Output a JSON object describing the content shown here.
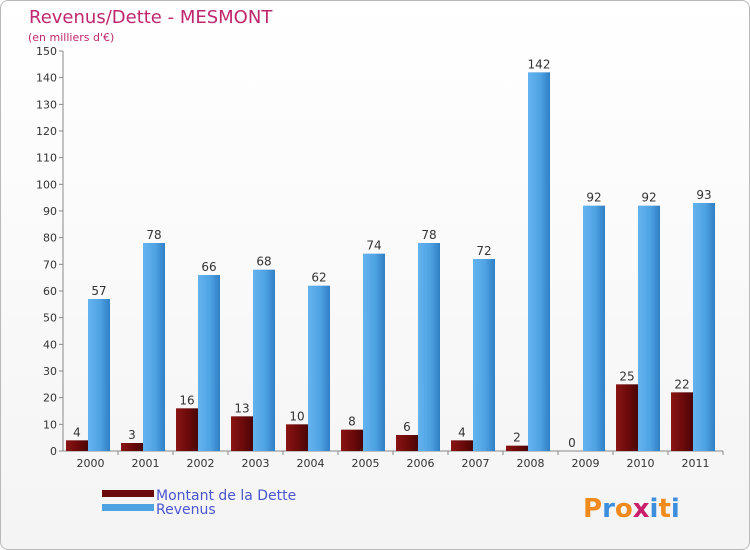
{
  "chart_data": {
    "type": "bar",
    "title": "Revenus/Dette - MESMONT",
    "subtitle": "(en milliers d'€)",
    "categories": [
      "2000",
      "2001",
      "2002",
      "2003",
      "2004",
      "2005",
      "2006",
      "2007",
      "2008",
      "2009",
      "2010",
      "2011"
    ],
    "series": [
      {
        "name": "Montant de la Dette",
        "color": "#6b0a0a",
        "values": [
          4,
          3,
          16,
          13,
          10,
          8,
          6,
          4,
          2,
          0,
          25,
          22
        ]
      },
      {
        "name": "Revenus",
        "color": "#4fa3e3",
        "values": [
          57,
          78,
          66,
          68,
          62,
          74,
          78,
          72,
          142,
          92,
          92,
          93
        ]
      }
    ],
    "ylim": [
      0,
      150
    ],
    "ytick_step": 10,
    "grid": false,
    "legend_position": "bottom-left"
  },
  "branding": {
    "logo_letters": [
      "P",
      "r",
      "o",
      "x",
      "i",
      "t",
      "i"
    ],
    "logo_colors": [
      "#f08a1c",
      "#3e8ede",
      "#f08a1c",
      "#c81f6a",
      "#3e8ede",
      "#f08a1c",
      "#3e8ede"
    ]
  }
}
